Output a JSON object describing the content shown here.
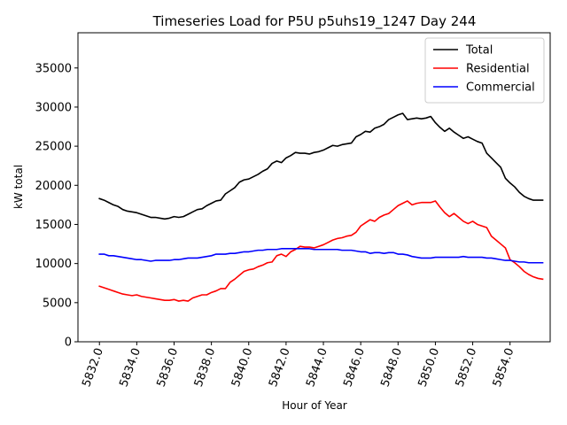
{
  "chart_data": {
    "type": "line",
    "title": "Timeseries Load for P5U p5uhs19_1247  Day 244",
    "xlabel": "Hour of Year",
    "ylabel": "kW total",
    "xlim": [
      5830.85,
      5856.15
    ],
    "ylim": [
      0,
      39500
    ],
    "xticks": [
      5832,
      5834,
      5836,
      5838,
      5840,
      5842,
      5844,
      5846,
      5848,
      5850,
      5852,
      5854
    ],
    "xtick_labels": [
      "5832.0",
      "5834.0",
      "5836.0",
      "5838.0",
      "5840.0",
      "5842.0",
      "5844.0",
      "5846.0",
      "5848.0",
      "5850.0",
      "5852.0",
      "5854.0"
    ],
    "yticks": [
      0,
      5000,
      10000,
      15000,
      20000,
      25000,
      30000,
      35000
    ],
    "ytick_labels": [
      "0",
      "5000",
      "10000",
      "15000",
      "20000",
      "25000",
      "30000",
      "35000"
    ],
    "legend_position": "top-right",
    "x": [
      5832.0,
      5832.25,
      5832.5,
      5832.75,
      5833.0,
      5833.25,
      5833.5,
      5833.75,
      5834.0,
      5834.25,
      5834.5,
      5834.75,
      5835.0,
      5835.25,
      5835.5,
      5835.75,
      5836.0,
      5836.25,
      5836.5,
      5836.75,
      5837.0,
      5837.25,
      5837.5,
      5837.75,
      5838.0,
      5838.25,
      5838.5,
      5838.75,
      5839.0,
      5839.25,
      5839.5,
      5839.75,
      5840.0,
      5840.25,
      5840.5,
      5840.75,
      5841.0,
      5841.25,
      5841.5,
      5841.75,
      5842.0,
      5842.25,
      5842.5,
      5842.75,
      5843.0,
      5843.25,
      5843.5,
      5843.75,
      5844.0,
      5844.25,
      5844.5,
      5844.75,
      5845.0,
      5845.25,
      5845.5,
      5845.75,
      5846.0,
      5846.25,
      5846.5,
      5846.75,
      5847.0,
      5847.25,
      5847.5,
      5847.75,
      5848.0,
      5848.25,
      5848.5,
      5848.75,
      5849.0,
      5849.25,
      5849.5,
      5849.75,
      5850.0,
      5850.25,
      5850.5,
      5850.75,
      5851.0,
      5851.25,
      5851.5,
      5851.75,
      5852.0,
      5852.25,
      5852.5,
      5852.75,
      5853.0,
      5853.25,
      5853.5,
      5853.75,
      5854.0,
      5854.25,
      5854.5,
      5854.75,
      5855.0,
      5855.25,
      5855.5,
      5855.75
    ],
    "series": [
      {
        "name": "Total",
        "color": "#000000",
        "values": [
          18300,
          18100,
          17800,
          17500,
          17300,
          16900,
          16700,
          16600,
          16500,
          16300,
          16100,
          15900,
          15900,
          15800,
          15700,
          15800,
          16000,
          15900,
          16000,
          16300,
          16600,
          16900,
          17000,
          17400,
          17700,
          18000,
          18100,
          18900,
          19300,
          19700,
          20400,
          20700,
          20800,
          21100,
          21400,
          21800,
          22100,
          22800,
          23100,
          22900,
          23500,
          23800,
          24200,
          24100,
          24100,
          24000,
          24200,
          24300,
          24500,
          24800,
          25100,
          25000,
          25200,
          25300,
          25400,
          26200,
          26500,
          26900,
          26800,
          27300,
          27500,
          27800,
          28400,
          28700,
          29000,
          29200,
          28400,
          28500,
          28600,
          28500,
          28600,
          28800,
          28000,
          27400,
          26900,
          27300,
          26800,
          26400,
          26000,
          26200,
          25900,
          25600,
          25400,
          24100,
          23500,
          22900,
          22300,
          20900,
          20300,
          19800,
          19100,
          18600,
          18300,
          18100,
          18100,
          18100
        ]
      },
      {
        "name": "Residential",
        "color": "#ff0000",
        "values": [
          7100,
          6900,
          6700,
          6500,
          6300,
          6100,
          6000,
          5900,
          6000,
          5800,
          5700,
          5600,
          5500,
          5400,
          5300,
          5300,
          5400,
          5200,
          5300,
          5200,
          5600,
          5800,
          6000,
          6000,
          6300,
          6500,
          6800,
          6800,
          7600,
          8000,
          8500,
          9000,
          9200,
          9300,
          9600,
          9800,
          10100,
          10200,
          11000,
          11200,
          10900,
          11500,
          11800,
          12200,
          12100,
          12100,
          12000,
          12200,
          12400,
          12700,
          13000,
          13200,
          13300,
          13500,
          13600,
          14000,
          14800,
          15200,
          15600,
          15400,
          15900,
          16200,
          16400,
          16900,
          17400,
          17700,
          18000,
          17500,
          17700,
          17800,
          17800,
          17800,
          18000,
          17200,
          16500,
          16000,
          16400,
          15900,
          15400,
          15100,
          15400,
          15000,
          14800,
          14600,
          13500,
          13000,
          12500,
          12000,
          10500,
          10100,
          9600,
          9000,
          8600,
          8300,
          8100,
          8000
        ]
      },
      {
        "name": "Commercial",
        "color": "#0000ff",
        "values": [
          11200,
          11200,
          11000,
          11000,
          10900,
          10800,
          10700,
          10600,
          10500,
          10500,
          10400,
          10300,
          10400,
          10400,
          10400,
          10400,
          10500,
          10500,
          10600,
          10700,
          10700,
          10700,
          10800,
          10900,
          11000,
          11200,
          11200,
          11200,
          11300,
          11300,
          11400,
          11500,
          11500,
          11600,
          11700,
          11700,
          11800,
          11800,
          11800,
          11900,
          11900,
          11900,
          11900,
          11900,
          11900,
          11900,
          11800,
          11800,
          11800,
          11800,
          11800,
          11800,
          11700,
          11700,
          11700,
          11600,
          11500,
          11500,
          11300,
          11400,
          11400,
          11300,
          11400,
          11400,
          11200,
          11200,
          11100,
          10900,
          10800,
          10700,
          10700,
          10700,
          10800,
          10800,
          10800,
          10800,
          10800,
          10800,
          10900,
          10800,
          10800,
          10800,
          10800,
          10700,
          10700,
          10600,
          10500,
          10400,
          10400,
          10300,
          10200,
          10200,
          10100,
          10100,
          10100,
          10100
        ]
      }
    ]
  }
}
